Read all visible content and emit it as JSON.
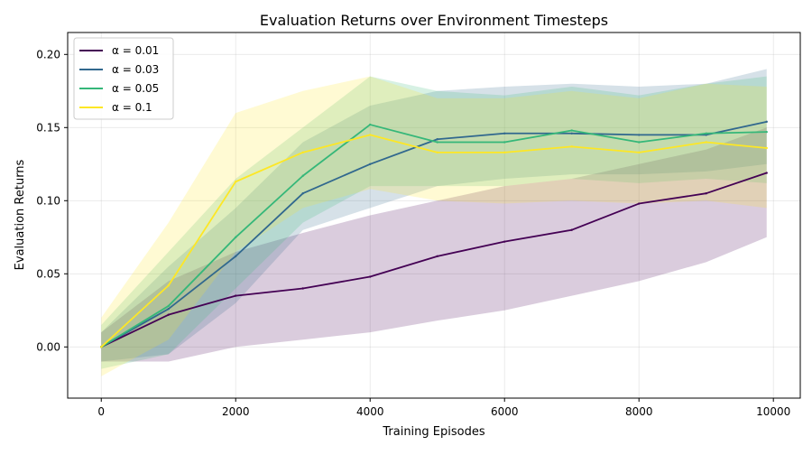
{
  "chart_data": {
    "type": "line",
    "title": "Evaluation Returns over Environment Timesteps",
    "xlabel": "Training Episodes",
    "ylabel": "Evaluation Returns",
    "xlim": [
      -500,
      10400
    ],
    "ylim": [
      -0.035,
      0.215
    ],
    "xticks": [
      0,
      2000,
      4000,
      6000,
      8000,
      10000
    ],
    "xtick_labels": [
      "0",
      "2000",
      "4000",
      "6000",
      "8000",
      "10000"
    ],
    "yticks": [
      0.0,
      0.05,
      0.1,
      0.15,
      0.2
    ],
    "ytick_labels": [
      "0.00",
      "0.05",
      "0.10",
      "0.15",
      "0.20"
    ],
    "grid": true,
    "legend_position": "upper-left",
    "x": [
      0,
      1000,
      2000,
      3000,
      4000,
      5000,
      6000,
      7000,
      8000,
      9000,
      9900
    ],
    "series": [
      {
        "name": "α = 0.01",
        "color": "#440154",
        "values": [
          0.0,
          0.022,
          0.035,
          0.04,
          0.048,
          0.062,
          0.072,
          0.08,
          0.098,
          0.105,
          0.119
        ],
        "lower": [
          -0.01,
          -0.01,
          0.0,
          0.005,
          0.01,
          0.018,
          0.025,
          0.035,
          0.045,
          0.058,
          0.075
        ],
        "upper": [
          0.01,
          0.045,
          0.065,
          0.078,
          0.09,
          0.1,
          0.11,
          0.115,
          0.125,
          0.135,
          0.15
        ]
      },
      {
        "name": "α = 0.03",
        "color": "#31688e",
        "values": [
          0.0,
          0.026,
          0.062,
          0.105,
          0.125,
          0.142,
          0.146,
          0.146,
          0.145,
          0.145,
          0.154
        ],
        "lower": [
          -0.01,
          -0.005,
          0.03,
          0.08,
          0.095,
          0.11,
          0.115,
          0.118,
          0.118,
          0.12,
          0.125
        ],
        "upper": [
          0.01,
          0.055,
          0.095,
          0.14,
          0.165,
          0.175,
          0.178,
          0.18,
          0.178,
          0.18,
          0.19
        ]
      },
      {
        "name": "α = 0.05",
        "color": "#35b779",
        "values": [
          0.0,
          0.028,
          0.075,
          0.117,
          0.152,
          0.14,
          0.14,
          0.148,
          0.14,
          0.146,
          0.147
        ],
        "lower": [
          -0.015,
          -0.005,
          0.04,
          0.085,
          0.11,
          0.11,
          0.11,
          0.115,
          0.112,
          0.115,
          0.112
        ],
        "upper": [
          0.015,
          0.065,
          0.115,
          0.15,
          0.185,
          0.175,
          0.172,
          0.178,
          0.172,
          0.18,
          0.185
        ]
      },
      {
        "name": "α = 0.1",
        "color": "#fde725",
        "values": [
          0.0,
          0.042,
          0.113,
          0.133,
          0.145,
          0.133,
          0.133,
          0.137,
          0.133,
          0.14,
          0.136
        ],
        "lower": [
          -0.02,
          0.005,
          0.065,
          0.095,
          0.108,
          0.1,
          0.098,
          0.1,
          0.098,
          0.1,
          0.095
        ],
        "upper": [
          0.02,
          0.085,
          0.16,
          0.175,
          0.185,
          0.17,
          0.17,
          0.175,
          0.17,
          0.18,
          0.178
        ]
      }
    ]
  }
}
